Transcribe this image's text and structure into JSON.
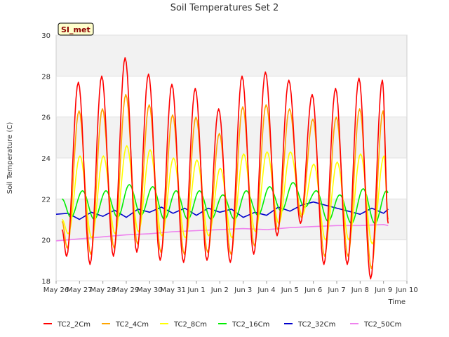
{
  "chart_data": {
    "type": "line",
    "title": "Soil Temperatures Set 2",
    "xlabel": "Time",
    "ylabel": "Soil Temperature (C)",
    "badge": "SI_met",
    "ylim": [
      18,
      30
    ],
    "yticks": [
      18,
      20,
      22,
      24,
      26,
      28,
      30
    ],
    "xlim": [
      0,
      15
    ],
    "xtick_labels": [
      "May 26",
      "May 27",
      "May 28",
      "May 29",
      "May 30",
      "May 31",
      "Jun 1",
      "Jun 2",
      "Jun 3",
      "Jun 4",
      "Jun 5",
      "Jun 6",
      "Jun 7",
      "Jun 8",
      "Jun 9",
      "Jun 10"
    ],
    "grid": true,
    "legend_position": "bottom",
    "peaks": {
      "TC2_2Cm": [
        27.7,
        28.0,
        28.9,
        28.1,
        27.6,
        27.4,
        26.4,
        28.0,
        28.2,
        27.8,
        27.1,
        27.4,
        27.9,
        27.8
      ],
      "TC2_4Cm": [
        26.3,
        26.4,
        27.1,
        26.6,
        26.1,
        26.0,
        25.2,
        26.5,
        26.6,
        26.4,
        25.9,
        26.0,
        26.4,
        26.3
      ],
      "TC2_8Cm": [
        24.1,
        24.1,
        24.6,
        24.4,
        24.0,
        23.9,
        23.5,
        24.2,
        24.3,
        24.3,
        23.7,
        23.8,
        24.2,
        24.1
      ],
      "TC2_16Cm": [
        22.4,
        22.4,
        22.7,
        22.6,
        22.4,
        22.4,
        22.2,
        22.4,
        22.6,
        22.8,
        22.4,
        22.2,
        22.5,
        22.4
      ]
    },
    "troughs": {
      "TC2_2Cm": [
        19.2,
        18.8,
        19.2,
        19.4,
        19.0,
        18.9,
        19.0,
        18.9,
        19.3,
        20.2,
        20.8,
        18.8,
        18.8,
        18.1,
        20.8
      ],
      "TC2_4Cm": [
        19.6,
        19.3,
        19.6,
        19.8,
        19.4,
        19.3,
        19.4,
        19.3,
        19.7,
        20.5,
        21.1,
        19.2,
        19.2,
        18.6,
        21.0
      ],
      "TC2_8Cm": [
        20.3,
        20.1,
        20.3,
        20.4,
        20.2,
        20.1,
        20.2,
        20.1,
        20.4,
        20.8,
        21.2,
        20.0,
        20.0,
        19.8,
        21.0
      ],
      "TC2_16Cm": [
        21.1,
        21.0,
        21.1,
        21.2,
        21.0,
        21.0,
        21.0,
        21.0,
        21.2,
        21.4,
        21.6,
        20.9,
        20.8,
        20.8,
        21.2
      ]
    },
    "series": [
      {
        "name": "TC2_2Cm",
        "color": "#ff0000",
        "start": 20.5,
        "end": 20.8
      },
      {
        "name": "TC2_4Cm",
        "color": "#ffa500",
        "start": 20.9,
        "end": 21.0
      },
      {
        "name": "TC2_8Cm",
        "color": "#ffff00",
        "start": 21.0,
        "end": 21.0
      },
      {
        "name": "TC2_16Cm",
        "color": "#00ee00",
        "start": 22.0,
        "end": 22.3
      },
      {
        "name": "TC2_32Cm",
        "color": "#0000cc",
        "x": [
          0,
          0.5,
          1,
          1.5,
          2,
          2.5,
          3,
          3.5,
          4,
          4.5,
          5,
          5.5,
          6,
          6.5,
          7,
          7.5,
          8,
          8.5,
          9,
          9.5,
          10,
          10.5,
          11,
          11.5,
          12,
          12.5,
          13,
          13.5,
          14,
          14.2
        ],
        "y": [
          21.25,
          21.3,
          21.0,
          21.35,
          21.15,
          21.45,
          21.1,
          21.5,
          21.35,
          21.6,
          21.3,
          21.55,
          21.2,
          21.55,
          21.35,
          21.5,
          21.1,
          21.35,
          21.2,
          21.6,
          21.4,
          21.7,
          21.85,
          21.7,
          21.55,
          21.4,
          21.25,
          21.55,
          21.3,
          21.5
        ]
      },
      {
        "name": "TC2_50Cm",
        "color": "#ee82ee",
        "x": [
          0,
          1,
          2,
          3,
          4,
          5,
          6,
          7,
          8,
          9,
          10,
          11,
          12,
          13,
          14,
          14.2
        ],
        "y": [
          19.95,
          20.05,
          20.15,
          20.25,
          20.3,
          20.4,
          20.45,
          20.5,
          20.55,
          20.5,
          20.6,
          20.65,
          20.7,
          20.7,
          20.75,
          20.7
        ]
      }
    ]
  }
}
